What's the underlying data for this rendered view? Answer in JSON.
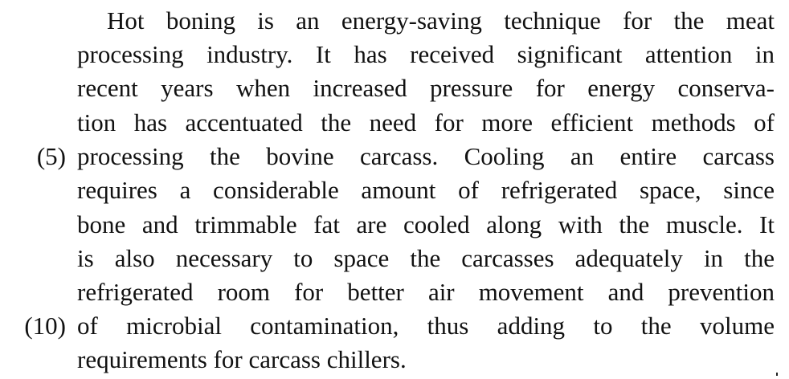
{
  "passage": {
    "lines": [
      "Hot boning is an energy-saving technique for the meat",
      "processing industry. It has received significant attention in",
      "recent years when increased pressure for energy conserva-",
      "tion has accentuated the need for more efficient methods of",
      "processing the bovine carcass. Cooling an entire carcass",
      "requires a considerable amount of refrigerated space, since",
      "bone and trimmable fat are cooled along with the muscle. It",
      "is also necessary to space the carcasses adequately in the",
      "refrigerated room for better air movement and prevention",
      "of microbial contamination, thus adding to the volume",
      "requirements for carcass chillers."
    ],
    "line_numbers": {
      "line_5": "(5)",
      "line_10": "(10)"
    }
  }
}
